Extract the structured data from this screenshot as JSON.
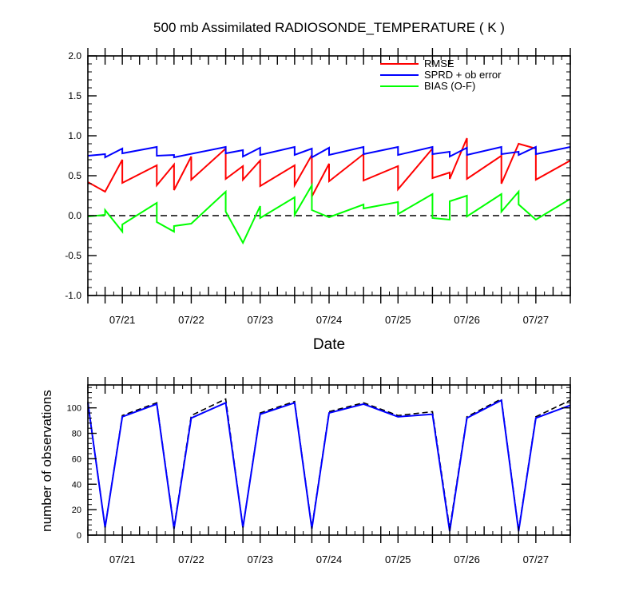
{
  "chart_data": [
    {
      "type": "line",
      "title": "500 mb Assimilated RADIOSONDE_TEMPERATURE ( K )",
      "xlabel": "Date",
      "ylabel": "",
      "x_range": [
        "07/20 12:00",
        "07/27 12:00"
      ],
      "ylim": [
        -1.0,
        2.0
      ],
      "yticks": [
        "2.0",
        "1.5",
        "1.0",
        "0.5",
        "0.0",
        "-0.5",
        "-1.0"
      ],
      "xticks": [
        {
          "x": "07/21 00:00",
          "label": "07/21"
        },
        {
          "x": "07/22 00:00",
          "label": "07/22"
        },
        {
          "x": "07/23 00:00",
          "label": "07/23"
        },
        {
          "x": "07/24 00:00",
          "label": "07/24"
        },
        {
          "x": "07/25 00:00",
          "label": "07/25"
        },
        {
          "x": "07/26 00:00",
          "label": "07/26"
        },
        {
          "x": "07/27 00:00",
          "label": "07/27"
        }
      ],
      "reference_line": {
        "y": 0.0,
        "style": "dashed"
      },
      "grid": false,
      "legend": "top-right",
      "series": [
        {
          "name": "RMSE",
          "color": "#ff0000",
          "points": [
            [
              "07/20 12:00",
              0.42
            ],
            [
              "07/20 18:00",
              0.3
            ],
            [
              "07/21 00:00",
              0.7
            ],
            [
              "07/21 00:00",
              0.41
            ],
            [
              "07/21 12:00",
              0.63
            ],
            [
              "07/21 12:00",
              0.38
            ],
            [
              "07/21 18:00",
              0.64
            ],
            [
              "07/21 18:00",
              0.32
            ],
            [
              "07/22 00:00",
              0.74
            ],
            [
              "07/22 00:00",
              0.45
            ],
            [
              "07/22 12:00",
              0.84
            ],
            [
              "07/22 12:00",
              0.46
            ],
            [
              "07/22 18:00",
              0.62
            ],
            [
              "07/22 18:00",
              0.45
            ],
            [
              "07/23 00:00",
              0.69
            ],
            [
              "07/23 00:00",
              0.37
            ],
            [
              "07/23 12:00",
              0.63
            ],
            [
              "07/23 12:00",
              0.38
            ],
            [
              "07/23 18:00",
              0.76
            ],
            [
              "07/23 18:00",
              0.24
            ],
            [
              "07/24 00:00",
              0.65
            ],
            [
              "07/24 00:00",
              0.43
            ],
            [
              "07/24 12:00",
              0.77
            ],
            [
              "07/24 12:00",
              0.44
            ],
            [
              "07/25 00:00",
              0.62
            ],
            [
              "07/25 00:00",
              0.33
            ],
            [
              "07/25 12:00",
              0.84
            ],
            [
              "07/25 12:00",
              0.47
            ],
            [
              "07/25 18:00",
              0.54
            ],
            [
              "07/25 18:00",
              0.46
            ],
            [
              "07/26 00:00",
              0.97
            ],
            [
              "07/26 00:00",
              0.46
            ],
            [
              "07/26 12:00",
              0.75
            ],
            [
              "07/26 12:00",
              0.4
            ],
            [
              "07/26 18:00",
              0.9
            ],
            [
              "07/27 00:00",
              0.84
            ],
            [
              "07/27 00:00",
              0.45
            ],
            [
              "07/27 12:00",
              0.69
            ]
          ]
        },
        {
          "name": "SPRD + ob error",
          "color": "#0000ff",
          "points": [
            [
              "07/20 12:00",
              0.75
            ],
            [
              "07/20 18:00",
              0.77
            ],
            [
              "07/20 18:00",
              0.73
            ],
            [
              "07/21 00:00",
              0.84
            ],
            [
              "07/21 00:00",
              0.78
            ],
            [
              "07/21 12:00",
              0.86
            ],
            [
              "07/21 12:00",
              0.75
            ],
            [
              "07/21 18:00",
              0.76
            ],
            [
              "07/21 18:00",
              0.73
            ],
            [
              "07/22 12:00",
              0.86
            ],
            [
              "07/22 12:00",
              0.78
            ],
            [
              "07/22 18:00",
              0.82
            ],
            [
              "07/22 18:00",
              0.74
            ],
            [
              "07/23 00:00",
              0.85
            ],
            [
              "07/23 00:00",
              0.76
            ],
            [
              "07/23 12:00",
              0.86
            ],
            [
              "07/23 12:00",
              0.76
            ],
            [
              "07/23 18:00",
              0.84
            ],
            [
              "07/23 18:00",
              0.73
            ],
            [
              "07/24 00:00",
              0.85
            ],
            [
              "07/24 00:00",
              0.76
            ],
            [
              "07/24 12:00",
              0.86
            ],
            [
              "07/24 12:00",
              0.77
            ],
            [
              "07/25 00:00",
              0.86
            ],
            [
              "07/25 00:00",
              0.76
            ],
            [
              "07/25 12:00",
              0.86
            ],
            [
              "07/25 12:00",
              0.77
            ],
            [
              "07/25 18:00",
              0.8
            ],
            [
              "07/25 18:00",
              0.74
            ],
            [
              "07/26 00:00",
              0.85
            ],
            [
              "07/26 00:00",
              0.76
            ],
            [
              "07/26 12:00",
              0.86
            ],
            [
              "07/26 12:00",
              0.77
            ],
            [
              "07/26 18:00",
              0.8
            ],
            [
              "07/26 18:00",
              0.76
            ],
            [
              "07/27 00:00",
              0.86
            ],
            [
              "07/27 00:00",
              0.77
            ],
            [
              "07/27 12:00",
              0.86
            ]
          ]
        },
        {
          "name": "BIAS (O-F)",
          "color": "#00ff00",
          "points": [
            [
              "07/20 12:00",
              -0.01
            ],
            [
              "07/20 18:00",
              0.01
            ],
            [
              "07/20 18:00",
              0.07
            ],
            [
              "07/21 00:00",
              -0.2
            ],
            [
              "07/21 00:00",
              -0.11
            ],
            [
              "07/21 12:00",
              0.16
            ],
            [
              "07/21 12:00",
              -0.08
            ],
            [
              "07/21 18:00",
              -0.2
            ],
            [
              "07/21 18:00",
              -0.13
            ],
            [
              "07/22 00:00",
              -0.1
            ],
            [
              "07/22 12:00",
              0.3
            ],
            [
              "07/22 12:00",
              0.05
            ],
            [
              "07/22 18:00",
              -0.34
            ],
            [
              "07/23 00:00",
              0.12
            ],
            [
              "07/23 00:00",
              -0.03
            ],
            [
              "07/23 12:00",
              0.23
            ],
            [
              "07/23 12:00",
              0.01
            ],
            [
              "07/23 18:00",
              0.38
            ],
            [
              "07/23 18:00",
              0.07
            ],
            [
              "07/24 00:00",
              -0.02
            ],
            [
              "07/24 12:00",
              0.14
            ],
            [
              "07/24 12:00",
              0.09
            ],
            [
              "07/25 00:00",
              0.17
            ],
            [
              "07/25 00:00",
              0.02
            ],
            [
              "07/25 12:00",
              0.27
            ],
            [
              "07/25 12:00",
              -0.03
            ],
            [
              "07/25 18:00",
              -0.05
            ],
            [
              "07/25 18:00",
              0.18
            ],
            [
              "07/26 00:00",
              0.25
            ],
            [
              "07/26 00:00",
              -0.01
            ],
            [
              "07/26 12:00",
              0.27
            ],
            [
              "07/26 12:00",
              0.05
            ],
            [
              "07/26 18:00",
              0.3
            ],
            [
              "07/26 18:00",
              0.14
            ],
            [
              "07/27 00:00",
              -0.05
            ],
            [
              "07/27 12:00",
              0.21
            ]
          ]
        }
      ]
    },
    {
      "type": "line",
      "title": "",
      "xlabel": "",
      "ylabel": "number of observations",
      "x_range": [
        "07/20 12:00",
        "07/27 12:00"
      ],
      "ylim": [
        0,
        118
      ],
      "yticks": [
        "100",
        "80",
        "60",
        "40",
        "20",
        "0"
      ],
      "xticks": [
        {
          "x": "07/21 00:00",
          "label": "07/21"
        },
        {
          "x": "07/22 00:00",
          "label": "07/22"
        },
        {
          "x": "07/23 00:00",
          "label": "07/23"
        },
        {
          "x": "07/24 00:00",
          "label": "07/24"
        },
        {
          "x": "07/25 00:00",
          "label": "07/25"
        },
        {
          "x": "07/26 00:00",
          "label": "07/26"
        },
        {
          "x": "07/27 00:00",
          "label": "07/27"
        }
      ],
      "grid": false,
      "series": [
        {
          "color": "#000000",
          "style": "dashed",
          "points": [
            [
              "07/20 12:00",
              105
            ],
            [
              "07/20 18:00",
              6
            ],
            [
              "07/21 00:00",
              94
            ],
            [
              "07/21 12:00",
              104
            ],
            [
              "07/21 18:00",
              6
            ],
            [
              "07/22 00:00",
              94
            ],
            [
              "07/22 12:00",
              107
            ],
            [
              "07/22 18:00",
              6
            ],
            [
              "07/23 00:00",
              96
            ],
            [
              "07/23 12:00",
              105
            ],
            [
              "07/23 18:00",
              6
            ],
            [
              "07/24 00:00",
              97
            ],
            [
              "07/24 12:00",
              104
            ],
            [
              "07/25 00:00",
              94
            ],
            [
              "07/25 12:00",
              97
            ],
            [
              "07/25 18:00",
              5
            ],
            [
              "07/26 00:00",
              93
            ],
            [
              "07/26 12:00",
              107
            ],
            [
              "07/26 18:00",
              4
            ],
            [
              "07/27 00:00",
              93
            ],
            [
              "07/27 12:00",
              106
            ]
          ]
        },
        {
          "color": "#0000ff",
          "style": "solid",
          "points": [
            [
              "07/20 12:00",
              104
            ],
            [
              "07/20 18:00",
              6
            ],
            [
              "07/21 00:00",
              93
            ],
            [
              "07/21 12:00",
              103
            ],
            [
              "07/21 18:00",
              5
            ],
            [
              "07/22 00:00",
              92
            ],
            [
              "07/22 12:00",
              104
            ],
            [
              "07/22 18:00",
              6
            ],
            [
              "07/23 00:00",
              95
            ],
            [
              "07/23 12:00",
              104
            ],
            [
              "07/23 18:00",
              5
            ],
            [
              "07/24 00:00",
              96
            ],
            [
              "07/24 12:00",
              103
            ],
            [
              "07/25 00:00",
              93
            ],
            [
              "07/25 12:00",
              95
            ],
            [
              "07/25 18:00",
              3
            ],
            [
              "07/26 00:00",
              92
            ],
            [
              "07/26 12:00",
              106
            ],
            [
              "07/26 18:00",
              3
            ],
            [
              "07/27 00:00",
              92
            ],
            [
              "07/27 12:00",
              102
            ]
          ]
        }
      ]
    }
  ]
}
